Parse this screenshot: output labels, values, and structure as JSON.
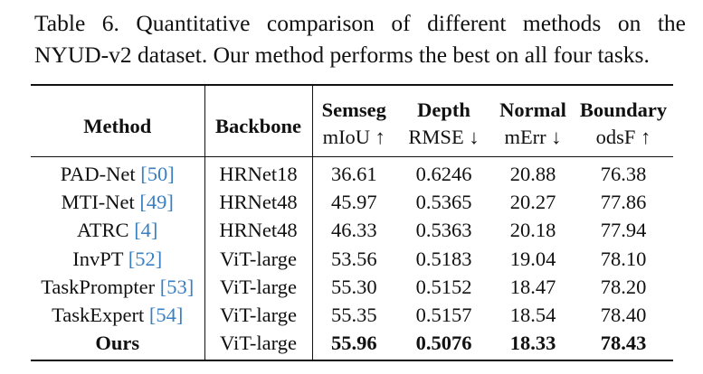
{
  "caption": {
    "line1": "Table 6.  Quantitative comparison of different methods on the",
    "line2": "NYUD-v2 dataset. Our method performs the best on all four tasks."
  },
  "table": {
    "headers": {
      "method": "Method",
      "backbone": "Backbone",
      "semseg": "Semseg",
      "semseg_metric": "mIoU ↑",
      "depth": "Depth",
      "depth_metric": "RMSE ↓",
      "normal": "Normal",
      "normal_metric": "mErr ↓",
      "boundary": "Boundary",
      "boundary_metric": "odsF ↑"
    },
    "rows": [
      {
        "method": "PAD-Net",
        "cite": "[50]",
        "backbone": "HRNet18",
        "semseg": "36.61",
        "depth": "0.6246",
        "normal": "20.88",
        "boundary": "76.38"
      },
      {
        "method": "MTI-Net",
        "cite": "[49]",
        "backbone": "HRNet48",
        "semseg": "45.97",
        "depth": "0.5365",
        "normal": "20.27",
        "boundary": "77.86"
      },
      {
        "method": "ATRC",
        "cite": "[4]",
        "backbone": "HRNet48",
        "semseg": "46.33",
        "depth": "0.5363",
        "normal": "20.18",
        "boundary": "77.94"
      },
      {
        "method": "InvPT",
        "cite": "[52]",
        "backbone": "ViT-large",
        "semseg": "53.56",
        "depth": "0.5183",
        "normal": "19.04",
        "boundary": "78.10"
      },
      {
        "method": "TaskPrompter",
        "cite": "[53]",
        "backbone": "ViT-large",
        "semseg": "55.30",
        "depth": "0.5152",
        "normal": "18.47",
        "boundary": "78.20"
      },
      {
        "method": "TaskExpert",
        "cite": "[54]",
        "backbone": "ViT-large",
        "semseg": "55.35",
        "depth": "0.5157",
        "normal": "18.54",
        "boundary": "78.40"
      },
      {
        "method": "Ours",
        "cite": "",
        "backbone": "ViT-large",
        "semseg": "55.96",
        "depth": "0.5076",
        "normal": "18.33",
        "boundary": "78.43"
      }
    ]
  }
}
